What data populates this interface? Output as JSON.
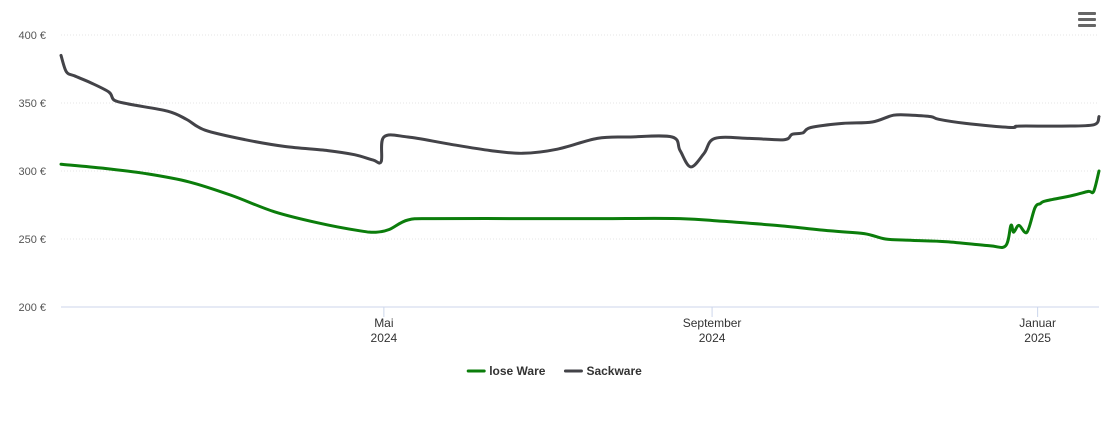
{
  "chart_data": {
    "type": "line",
    "currency_unit": "€",
    "yticks": [
      200,
      250,
      300,
      350,
      400
    ],
    "ylim": [
      200,
      400
    ],
    "x_range": [
      "2024-01-01",
      "2025-01-24"
    ],
    "xticks": [
      {
        "date": "2024-05-01",
        "month": "Mai",
        "year": "2024"
      },
      {
        "date": "2024-09-01",
        "month": "September",
        "year": "2024"
      },
      {
        "date": "2025-01-01",
        "month": "Januar",
        "year": "2025"
      }
    ],
    "grid": true,
    "legend_position": "bottom-center",
    "series": [
      {
        "name": "lose Ware",
        "color": "#0b7d0b",
        "points": [
          [
            "2024-01-01",
            305
          ],
          [
            "2024-01-17",
            302
          ],
          [
            "2024-02-02",
            298
          ],
          [
            "2024-02-18",
            292
          ],
          [
            "2024-03-05",
            282
          ],
          [
            "2024-03-21",
            270
          ],
          [
            "2024-04-06",
            262
          ],
          [
            "2024-04-22",
            256
          ],
          [
            "2024-04-28",
            255
          ],
          [
            "2024-05-03",
            257
          ],
          [
            "2024-05-10",
            264
          ],
          [
            "2024-05-20",
            265
          ],
          [
            "2024-06-20",
            265
          ],
          [
            "2024-07-20",
            265
          ],
          [
            "2024-08-20",
            265
          ],
          [
            "2024-09-05",
            263
          ],
          [
            "2024-09-25",
            260
          ],
          [
            "2024-10-15",
            256
          ],
          [
            "2024-10-28",
            254
          ],
          [
            "2024-11-05",
            250
          ],
          [
            "2024-11-15",
            249
          ],
          [
            "2024-11-28",
            248
          ],
          [
            "2024-12-14",
            245
          ],
          [
            "2024-12-20",
            245
          ],
          [
            "2024-12-22",
            260
          ],
          [
            "2024-12-23",
            255
          ],
          [
            "2024-12-25",
            260
          ],
          [
            "2024-12-28",
            255
          ],
          [
            "2024-12-31",
            273
          ],
          [
            "2025-01-02",
            276
          ],
          [
            "2025-01-04",
            278
          ],
          [
            "2025-01-14",
            282
          ],
          [
            "2025-01-20",
            285
          ],
          [
            "2025-01-22",
            285
          ],
          [
            "2025-01-24",
            300
          ]
        ]
      },
      {
        "name": "Sackware",
        "color": "#434348",
        "points": [
          [
            "2024-01-01",
            385
          ],
          [
            "2024-01-03",
            373
          ],
          [
            "2024-01-06",
            370
          ],
          [
            "2024-01-12",
            365
          ],
          [
            "2024-01-19",
            358
          ],
          [
            "2024-01-21",
            352
          ],
          [
            "2024-01-27",
            349
          ],
          [
            "2024-02-10",
            344
          ],
          [
            "2024-02-17",
            338
          ],
          [
            "2024-02-24",
            330
          ],
          [
            "2024-03-10",
            323
          ],
          [
            "2024-03-25",
            318
          ],
          [
            "2024-04-10",
            315
          ],
          [
            "2024-04-20",
            312
          ],
          [
            "2024-04-27",
            308
          ],
          [
            "2024-04-30",
            307
          ],
          [
            "2024-05-01",
            325
          ],
          [
            "2024-05-10",
            325
          ],
          [
            "2024-05-25",
            320
          ],
          [
            "2024-06-10",
            315
          ],
          [
            "2024-06-22",
            313
          ],
          [
            "2024-07-05",
            316
          ],
          [
            "2024-07-20",
            324
          ],
          [
            "2024-08-01",
            325
          ],
          [
            "2024-08-17",
            325
          ],
          [
            "2024-08-20",
            315
          ],
          [
            "2024-08-24",
            303
          ],
          [
            "2024-08-29",
            313
          ],
          [
            "2024-09-02",
            324
          ],
          [
            "2024-09-15",
            324
          ],
          [
            "2024-09-28",
            323
          ],
          [
            "2024-10-01",
            327
          ],
          [
            "2024-10-05",
            328
          ],
          [
            "2024-10-08",
            332
          ],
          [
            "2024-10-20",
            335
          ],
          [
            "2024-10-31",
            336
          ],
          [
            "2024-11-08",
            341
          ],
          [
            "2024-11-15",
            341
          ],
          [
            "2024-11-22",
            340
          ],
          [
            "2024-11-25",
            338
          ],
          [
            "2024-12-05",
            335
          ],
          [
            "2024-12-15",
            333
          ],
          [
            "2024-12-23",
            332
          ],
          [
            "2024-12-25",
            333
          ],
          [
            "2025-01-10",
            333
          ],
          [
            "2025-01-22",
            334
          ],
          [
            "2025-01-24",
            340
          ]
        ]
      }
    ]
  }
}
